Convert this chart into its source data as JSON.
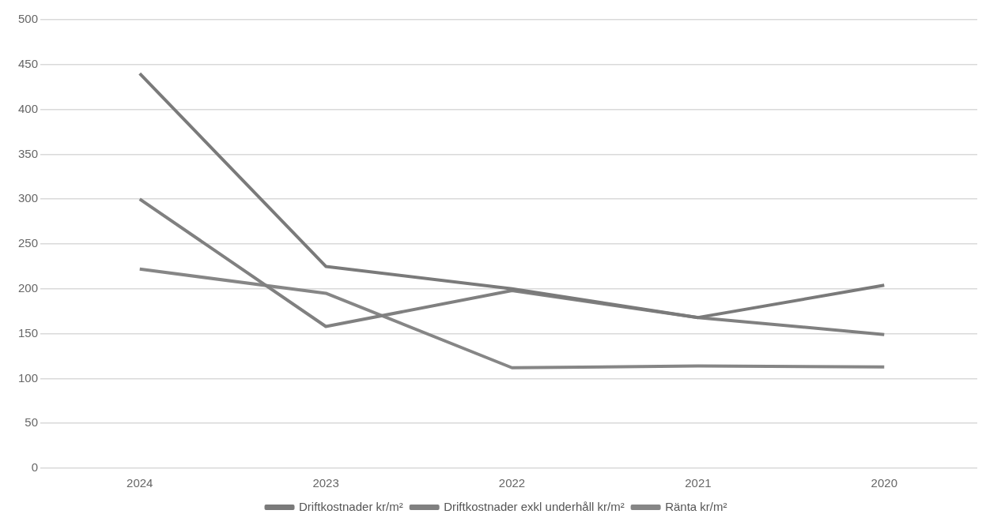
{
  "chart_data": {
    "type": "line",
    "categories": [
      "2024",
      "2023",
      "2022",
      "2021",
      "2020"
    ],
    "series": [
      {
        "name": "Driftkostnader kr/m²",
        "color": "#7a7a7a",
        "values": [
          440,
          225,
          200,
          168,
          204
        ]
      },
      {
        "name": "Driftkostnader exkl underhåll kr/m²",
        "color": "#808080",
        "values": [
          300,
          158,
          198,
          168,
          149
        ]
      },
      {
        "name": "Ränta kr/m²",
        "color": "#868686",
        "values": [
          222,
          195,
          112,
          114,
          113
        ]
      }
    ],
    "ylim": [
      0,
      500
    ],
    "yticks": [
      0,
      50,
      100,
      150,
      200,
      250,
      300,
      350,
      400,
      450,
      500
    ],
    "grid": "y",
    "legend": "bottom",
    "marker": "none",
    "line_style": "solid"
  }
}
